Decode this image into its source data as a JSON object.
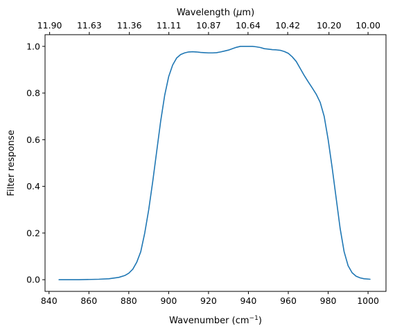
{
  "chart_data": {
    "type": "line",
    "xlabel_bottom": "Wavenumber (cm",
    "xlabel_bottom_sup": "−1",
    "xlabel_bottom_tail": ")",
    "xlabel_top": "Wavelength (",
    "xlabel_top_sym": "μ",
    "xlabel_top_tail": "m)",
    "ylabel": "Filter response",
    "xlim": [
      838,
      1009
    ],
    "ylim": [
      -0.05,
      1.05
    ],
    "x_ticks": [
      840,
      860,
      880,
      900,
      920,
      940,
      960,
      980,
      1000
    ],
    "x_tick_labels": [
      "840",
      "860",
      "880",
      "900",
      "920",
      "940",
      "960",
      "980",
      "1000"
    ],
    "y_ticks": [
      0.0,
      0.2,
      0.4,
      0.6,
      0.8,
      1.0
    ],
    "y_tick_labels": [
      "0.0",
      "0.2",
      "0.4",
      "0.6",
      "0.8",
      "1.0"
    ],
    "top_ticks": [
      840.3,
      860.2,
      880.3,
      900.1,
      920.0,
      939.8,
      959.7,
      980.4,
      1000.0
    ],
    "top_tick_labels": [
      "11.90",
      "11.63",
      "11.36",
      "11.11",
      "10.87",
      "10.64",
      "10.42",
      "10.20",
      "10.00"
    ],
    "series": [
      {
        "color": "#1f77b4",
        "x": [
          845,
          855,
          865,
          870,
          875,
          878,
          880,
          882,
          884,
          886,
          888,
          890,
          892,
          894,
          896,
          898,
          900,
          902,
          904,
          906,
          908,
          910,
          912,
          914,
          916,
          918,
          920,
          922,
          924,
          926,
          928,
          930,
          932,
          934,
          936,
          938,
          940,
          942,
          944,
          946,
          948,
          950,
          952,
          954,
          956,
          958,
          960,
          962,
          964,
          966,
          968,
          970,
          972,
          974,
          976,
          978,
          980,
          982,
          984,
          986,
          988,
          990,
          992,
          994,
          996,
          998,
          1001
        ],
        "y": [
          0.0,
          0.0,
          0.002,
          0.004,
          0.01,
          0.018,
          0.028,
          0.045,
          0.075,
          0.12,
          0.2,
          0.3,
          0.42,
          0.55,
          0.68,
          0.79,
          0.87,
          0.92,
          0.95,
          0.965,
          0.972,
          0.976,
          0.977,
          0.976,
          0.974,
          0.973,
          0.972,
          0.972,
          0.973,
          0.976,
          0.98,
          0.984,
          0.99,
          0.996,
          1.0,
          1.0,
          1.0,
          1.0,
          0.998,
          0.995,
          0.99,
          0.988,
          0.986,
          0.985,
          0.983,
          0.978,
          0.97,
          0.955,
          0.935,
          0.905,
          0.875,
          0.848,
          0.822,
          0.795,
          0.76,
          0.7,
          0.6,
          0.48,
          0.35,
          0.22,
          0.12,
          0.06,
          0.03,
          0.015,
          0.008,
          0.004,
          0.002
        ]
      }
    ]
  }
}
